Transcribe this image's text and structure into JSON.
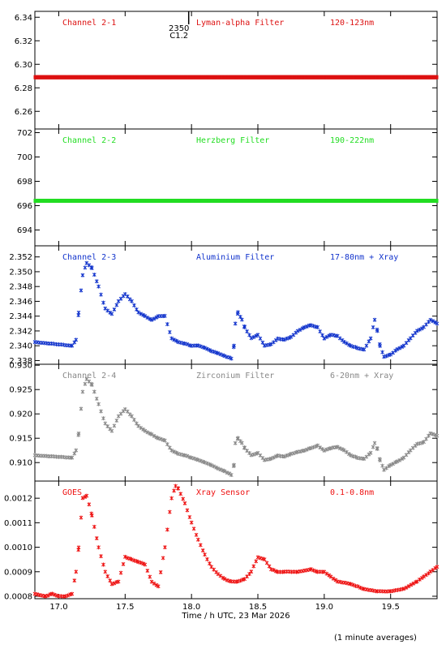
{
  "footer": {
    "note": "(1 minute averages)"
  },
  "chart_data": [
    {
      "type": "scatter",
      "labels": [
        "Channel 2-1",
        "Lyman-alpha Filter",
        "120-123nm"
      ],
      "color": "#dd1111",
      "ylim": [
        6.245,
        6.345
      ],
      "yticks": [
        6.26,
        6.28,
        6.3,
        6.32,
        6.34
      ],
      "ytick_labels": [
        "6.26",
        "6.28",
        "6.30",
        "6.32",
        "6.34"
      ],
      "annotation": {
        "lines": [
          "2350",
          "C1.2"
        ],
        "x": 17.82
      },
      "series": [
        {
          "x": [
            16.82,
            19.85
          ],
          "y": [
            6.289,
            6.289
          ]
        }
      ]
    },
    {
      "type": "scatter",
      "labels": [
        "Channel 2-2",
        "Herzberg Filter",
        "190-222nm"
      ],
      "color": "#22dd22",
      "ylim": [
        692.7,
        702.3
      ],
      "yticks": [
        694,
        696,
        698,
        700,
        702
      ],
      "ytick_labels": [
        "694",
        "696",
        "698",
        "700",
        "702"
      ],
      "series": [
        {
          "x": [
            16.82,
            19.85
          ],
          "y": [
            696.4,
            696.4
          ]
        }
      ]
    },
    {
      "type": "scatter",
      "labels": [
        "Channel 2-3",
        "Aluminium Filter",
        "17-80nm + Xray"
      ],
      "color": "#1133cc",
      "ylim": [
        2.3375,
        2.3535
      ],
      "yticks": [
        2.338,
        2.34,
        2.342,
        2.344,
        2.346,
        2.348,
        2.35,
        2.352
      ],
      "ytick_labels": [
        "2.338",
        "2.340",
        "2.342",
        "2.344",
        "2.346",
        "2.348",
        "2.350",
        "2.352"
      ],
      "series": [
        {
          "x": [
            16.82,
            17.1,
            17.13,
            17.15,
            17.18,
            17.21,
            17.25,
            17.3,
            17.35,
            17.4,
            17.45,
            17.5,
            17.55,
            17.6,
            17.65,
            17.7,
            17.75,
            17.8,
            17.85,
            17.9,
            17.95,
            18.0,
            18.05,
            18.1,
            18.15,
            18.2,
            18.25,
            18.3,
            18.32,
            18.33,
            18.35,
            18.38,
            18.4,
            18.45,
            18.5,
            18.55,
            18.6,
            18.65,
            18.7,
            18.75,
            18.8,
            18.85,
            18.9,
            18.95,
            19.0,
            19.05,
            19.1,
            19.15,
            19.2,
            19.25,
            19.3,
            19.35,
            19.38,
            19.4,
            19.42,
            19.45,
            19.5,
            19.55,
            19.6,
            19.65,
            19.7,
            19.75,
            19.8,
            19.85
          ],
          "y": [
            2.3405,
            2.34,
            2.3408,
            2.3445,
            2.3495,
            2.3512,
            2.3505,
            2.348,
            2.345,
            2.3443,
            2.346,
            2.347,
            2.346,
            2.3445,
            2.344,
            2.3435,
            2.344,
            2.344,
            2.341,
            2.3405,
            2.3403,
            2.34,
            2.34,
            2.3397,
            2.3393,
            2.339,
            2.3386,
            2.3383,
            2.34,
            2.343,
            2.3445,
            2.3435,
            2.3425,
            2.341,
            2.3415,
            2.34,
            2.3402,
            2.341,
            2.3408,
            2.3412,
            2.342,
            2.3425,
            2.3428,
            2.3425,
            2.341,
            2.3415,
            2.3413,
            2.3405,
            2.34,
            2.3397,
            2.3395,
            2.341,
            2.3435,
            2.342,
            2.34,
            2.3385,
            2.3388,
            2.3395,
            2.34,
            2.341,
            2.342,
            2.3425,
            2.3435,
            2.343
          ]
        }
      ]
    },
    {
      "type": "scatter",
      "labels": [
        "Channel 2-4",
        "Zirconium Filter",
        "6-20nm + Xray"
      ],
      "color": "#888888",
      "ylim": [
        0.9062,
        0.9302
      ],
      "yticks": [
        0.91,
        0.915,
        0.92,
        0.925,
        0.93
      ],
      "ytick_labels": [
        "0.910",
        "0.915",
        "0.920",
        "0.925",
        "0.930"
      ],
      "series": [
        {
          "x": [
            16.82,
            17.1,
            17.13,
            17.15,
            17.18,
            17.21,
            17.25,
            17.3,
            17.35,
            17.4,
            17.45,
            17.5,
            17.55,
            17.6,
            17.65,
            17.7,
            17.75,
            17.8,
            17.85,
            17.9,
            17.95,
            18.0,
            18.05,
            18.1,
            18.15,
            18.2,
            18.25,
            18.3,
            18.32,
            18.33,
            18.35,
            18.38,
            18.4,
            18.45,
            18.5,
            18.55,
            18.6,
            18.65,
            18.7,
            18.75,
            18.8,
            18.85,
            18.9,
            18.95,
            19.0,
            19.05,
            19.1,
            19.15,
            19.2,
            19.25,
            19.3,
            19.35,
            19.38,
            19.4,
            19.42,
            19.45,
            19.5,
            19.55,
            19.6,
            19.65,
            19.7,
            19.75,
            19.8,
            19.85
          ],
          "y": [
            0.9115,
            0.911,
            0.9125,
            0.916,
            0.9245,
            0.9272,
            0.926,
            0.922,
            0.918,
            0.9165,
            0.9195,
            0.921,
            0.9195,
            0.9175,
            0.9165,
            0.9158,
            0.915,
            0.9145,
            0.9125,
            0.9118,
            0.9115,
            0.911,
            0.9105,
            0.91,
            0.9095,
            0.9088,
            0.9082,
            0.9075,
            0.9095,
            0.914,
            0.915,
            0.914,
            0.913,
            0.9115,
            0.912,
            0.9105,
            0.9108,
            0.9115,
            0.9112,
            0.9118,
            0.9122,
            0.9125,
            0.913,
            0.9135,
            0.9125,
            0.913,
            0.9132,
            0.9125,
            0.9115,
            0.911,
            0.9108,
            0.912,
            0.914,
            0.9128,
            0.9105,
            0.9085,
            0.9095,
            0.9102,
            0.911,
            0.9125,
            0.9138,
            0.9142,
            0.916,
            0.9155
          ]
        }
      ]
    },
    {
      "type": "scatter",
      "labels": [
        "GOES",
        "Xray Sensor",
        "0.1-0.8nm"
      ],
      "color": "#ee1111",
      "ylim": [
        0.00079,
        0.00127
      ],
      "yticks": [
        0.0008,
        0.0009,
        0.001,
        0.0011,
        0.0012
      ],
      "ytick_labels": [
        "0.0008",
        "0.0009",
        "0.0010",
        "0.0011",
        "0.0012"
      ],
      "xlim": [
        16.82,
        19.85
      ],
      "xticks": [
        17.0,
        17.5,
        18.0,
        18.5,
        19.0,
        19.5
      ],
      "xtick_labels": [
        "17.0",
        "17.5",
        "18.0",
        "18.5",
        "19.0",
        "19.5"
      ],
      "xlabel": "Time / h UTC, 23 Mar 2026",
      "series": [
        {
          "x": [
            16.82,
            16.9,
            16.95,
            17.0,
            17.05,
            17.1,
            17.13,
            17.15,
            17.18,
            17.21,
            17.25,
            17.3,
            17.35,
            17.4,
            17.45,
            17.5,
            17.55,
            17.6,
            17.65,
            17.7,
            17.75,
            17.8,
            17.85,
            17.88,
            17.9,
            17.95,
            18.0,
            18.05,
            18.1,
            18.15,
            18.2,
            18.25,
            18.3,
            18.35,
            18.4,
            18.45,
            18.5,
            18.55,
            18.6,
            18.65,
            18.7,
            18.8,
            18.9,
            18.95,
            19.0,
            19.05,
            19.1,
            19.2,
            19.3,
            19.4,
            19.5,
            19.6,
            19.7,
            19.75,
            19.8,
            19.85
          ],
          "y": [
            0.00081,
            0.0008,
            0.00081,
            0.0008,
            0.0008,
            0.00081,
            0.0009,
            0.001,
            0.0012,
            0.00121,
            0.00113,
            0.001,
            0.0009,
            0.00085,
            0.00086,
            0.00096,
            0.00095,
            0.00094,
            0.00093,
            0.00086,
            0.00084,
            0.001,
            0.0012,
            0.00125,
            0.00124,
            0.00118,
            0.0011,
            0.00103,
            0.00097,
            0.00092,
            0.00089,
            0.00087,
            0.00086,
            0.00086,
            0.00087,
            0.0009,
            0.00096,
            0.00095,
            0.00091,
            0.0009,
            0.0009,
            0.0009,
            0.00091,
            0.0009,
            0.0009,
            0.00088,
            0.00086,
            0.00085,
            0.00083,
            0.00082,
            0.00082,
            0.00083,
            0.00086,
            0.00088,
            0.0009,
            0.00092
          ]
        }
      ]
    }
  ]
}
